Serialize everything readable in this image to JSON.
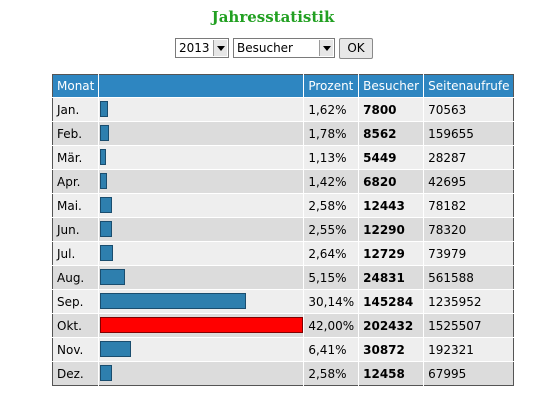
{
  "page": {
    "title": "Jahresstatistik"
  },
  "controls": {
    "year": "2013",
    "metric": "Besucher",
    "ok_label": "OK"
  },
  "table": {
    "headers": {
      "month": "Monat",
      "bar": "",
      "percent": "Prozent",
      "visitors": "Besucher",
      "pageviews": "Seitenaufrufe"
    },
    "rows": [
      {
        "month": "Jan.",
        "percent": "1,62%",
        "visitors": "7800",
        "pageviews": "70563",
        "share": 1.62
      },
      {
        "month": "Feb.",
        "percent": "1,78%",
        "visitors": "8562",
        "pageviews": "159655",
        "share": 1.78
      },
      {
        "month": "Mär.",
        "percent": "1,13%",
        "visitors": "5449",
        "pageviews": "28287",
        "share": 1.13
      },
      {
        "month": "Apr.",
        "percent": "1,42%",
        "visitors": "6820",
        "pageviews": "42695",
        "share": 1.42
      },
      {
        "month": "Mai.",
        "percent": "2,58%",
        "visitors": "12443",
        "pageviews": "78182",
        "share": 2.58
      },
      {
        "month": "Jun.",
        "percent": "2,55%",
        "visitors": "12290",
        "pageviews": "78320",
        "share": 2.55
      },
      {
        "month": "Jul.",
        "percent": "2,64%",
        "visitors": "12729",
        "pageviews": "73979",
        "share": 2.64
      },
      {
        "month": "Aug.",
        "percent": "5,15%",
        "visitors": "24831",
        "pageviews": "561588",
        "share": 5.15
      },
      {
        "month": "Sep.",
        "percent": "30,14%",
        "visitors": "145284",
        "pageviews": "1235952",
        "share": 30.14
      },
      {
        "month": "Okt.",
        "percent": "42,00%",
        "visitors": "202432",
        "pageviews": "1525507",
        "share": 42.0,
        "highlight": true
      },
      {
        "month": "Nov.",
        "percent": "6,41%",
        "visitors": "30872",
        "pageviews": "192321",
        "share": 6.41
      },
      {
        "month": "Dez.",
        "percent": "2,58%",
        "visitors": "12458",
        "pageviews": "67995",
        "share": 2.58
      }
    ]
  },
  "colors": {
    "title": "#22a022",
    "header_bg": "#2e86c1",
    "bar": "#2e7fae",
    "bar_max": "#ff0000"
  }
}
